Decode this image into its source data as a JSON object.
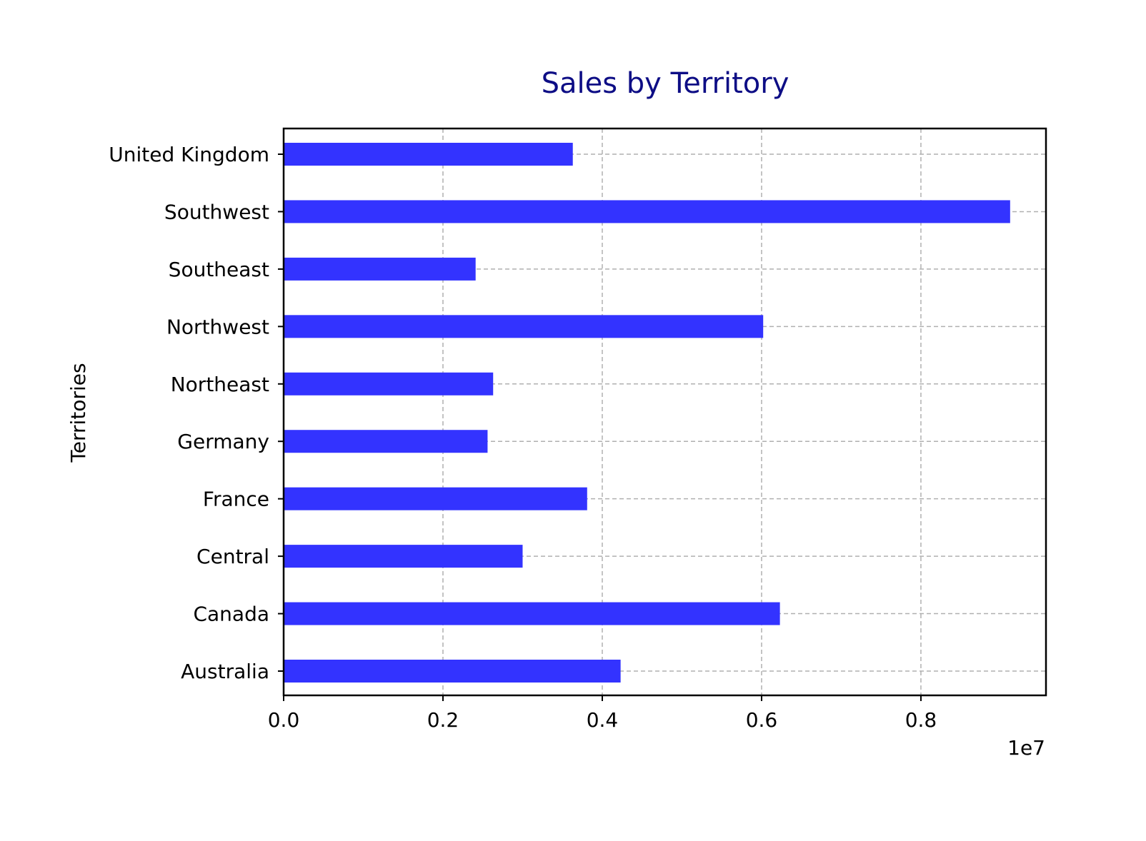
{
  "chart_data": {
    "type": "bar",
    "orientation": "horizontal",
    "title": "Sales by Territory",
    "title_color": "#0d0d85",
    "xlabel": "",
    "ylabel": "Territories",
    "x_offset_text": "1e7",
    "xlim": [
      0,
      9570000
    ],
    "x_ticks": [
      0.0,
      0.2,
      0.4,
      0.6,
      0.8
    ],
    "x_tick_labels": [
      "0.0",
      "0.2",
      "0.4",
      "0.6",
      "0.8"
    ],
    "x_scale_factor": 10000000,
    "grid": true,
    "bar_color": "#3333ff",
    "categories": [
      "Australia",
      "Canada",
      "Central",
      "France",
      "Germany",
      "Northeast",
      "Northwest",
      "Southeast",
      "Southwest",
      "United Kingdom"
    ],
    "values": [
      4230000,
      6230000,
      3000000,
      3810000,
      2560000,
      2630000,
      6020000,
      2410000,
      9120000,
      3630000
    ]
  }
}
